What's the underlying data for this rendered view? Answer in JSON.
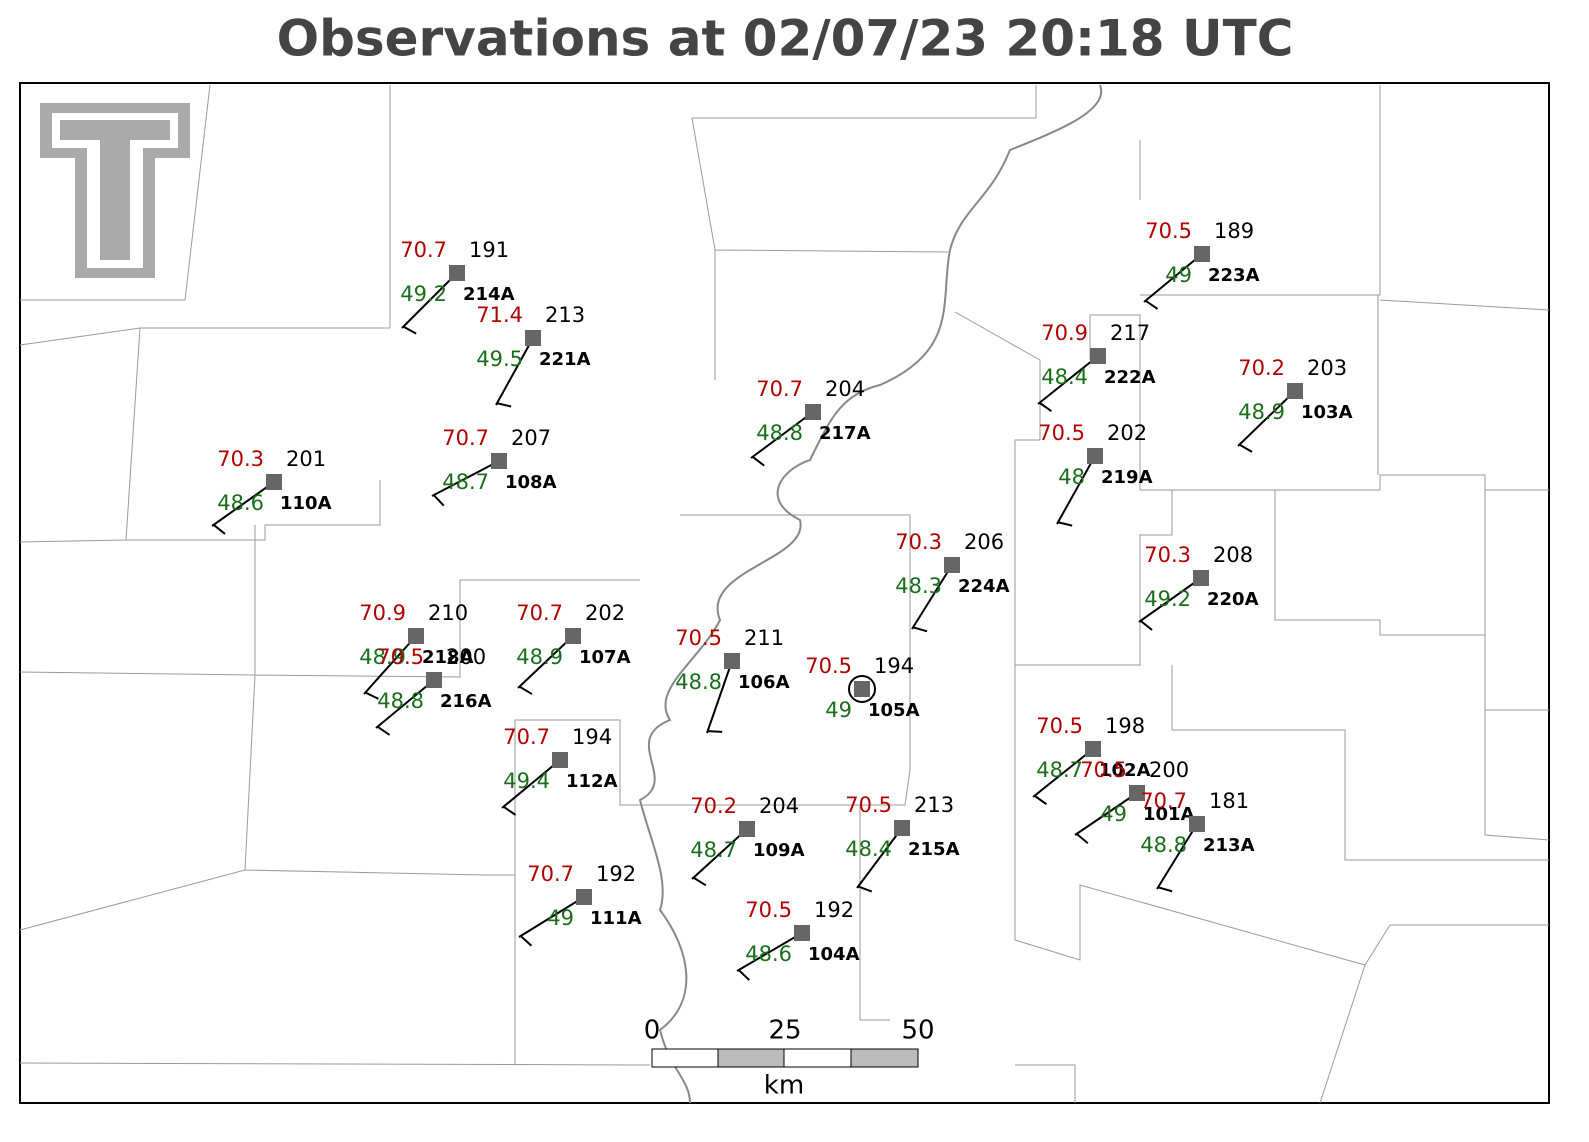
{
  "title": "Observations at 02/07/23 20:18 UTC",
  "stations": [
    {
      "id": "214A",
      "temperature": 70.7,
      "dewpoint": 49.2,
      "pressure": 191
    },
    {
      "id": "221A",
      "temperature": 71.4,
      "dewpoint": 49.5,
      "pressure": 213
    },
    {
      "id": "110A",
      "temperature": 70.3,
      "dewpoint": 48.6,
      "pressure": 201
    },
    {
      "id": "108A",
      "temperature": 70.7,
      "dewpoint": 48.7,
      "pressure": 207
    },
    {
      "id": "217A",
      "temperature": 70.7,
      "dewpoint": 48.8,
      "pressure": 204
    },
    {
      "id": "222A",
      "temperature": 70.9,
      "dewpoint": 48.4,
      "pressure": 217
    },
    {
      "id": "223A",
      "temperature": 70.5,
      "dewpoint": 49.0,
      "pressure": 189
    },
    {
      "id": "103A",
      "temperature": 70.2,
      "dewpoint": 48.9,
      "pressure": 203
    },
    {
      "id": "219A",
      "temperature": 70.5,
      "dewpoint": 48.0,
      "pressure": 202
    },
    {
      "id": "224A",
      "temperature": 70.3,
      "dewpoint": 48.3,
      "pressure": 206
    },
    {
      "id": "220A",
      "temperature": 70.3,
      "dewpoint": 49.2,
      "pressure": 208
    },
    {
      "id": "218A",
      "temperature": 70.9,
      "dewpoint": 48.9,
      "pressure": 210
    },
    {
      "id": "216A",
      "temperature": 70.5,
      "dewpoint": 48.8,
      "pressure": 200
    },
    {
      "id": "107A",
      "temperature": 70.7,
      "dewpoint": 48.9,
      "pressure": 202
    },
    {
      "id": "106A",
      "temperature": 70.5,
      "dewpoint": 48.8,
      "pressure": 211
    },
    {
      "id": "105A",
      "temperature": 70.5,
      "dewpoint": 49.0,
      "pressure": 194
    },
    {
      "id": "112A",
      "temperature": 70.7,
      "dewpoint": 49.4,
      "pressure": 194
    },
    {
      "id": "109A",
      "temperature": 70.2,
      "dewpoint": 48.7,
      "pressure": 204
    },
    {
      "id": "215A",
      "temperature": 70.5,
      "dewpoint": 48.4,
      "pressure": 213
    },
    {
      "id": "102A",
      "temperature": 70.5,
      "dewpoint": 48.7,
      "pressure": 198
    },
    {
      "id": "101A",
      "temperature": 70.5,
      "dewpoint": 49.0,
      "pressure": 200
    },
    {
      "id": "213A",
      "temperature": 70.7,
      "dewpoint": 48.8,
      "pressure": 181
    },
    {
      "id": "111A",
      "temperature": 70.7,
      "dewpoint": 49.0,
      "pressure": 192
    },
    {
      "id": "104A",
      "temperature": 70.5,
      "dewpoint": 48.6,
      "pressure": 192
    }
  ],
  "scale_bar": {
    "ticks": [
      0,
      25,
      50
    ],
    "unit": "km"
  }
}
